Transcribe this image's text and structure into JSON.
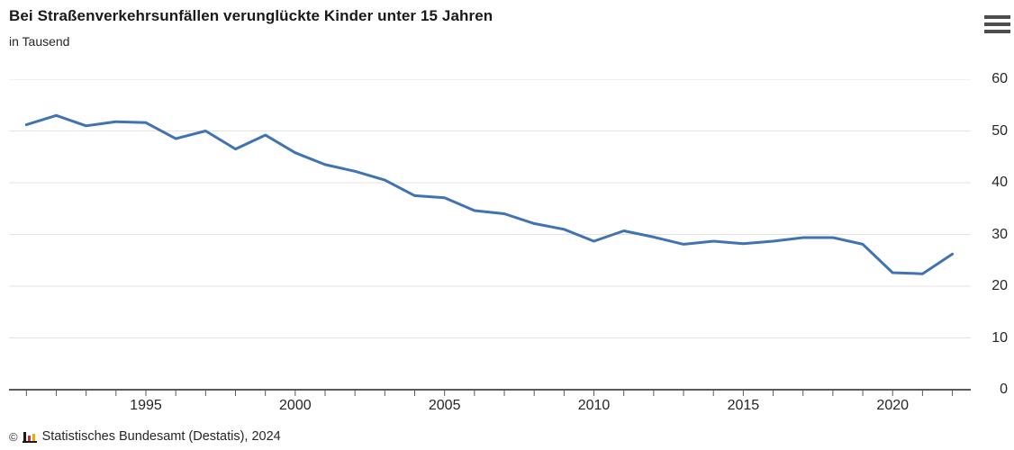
{
  "header": {
    "title": "Bei Straßenverkehrsunfällen verunglückte Kinder unter 15 Jahren",
    "subtitle": "in Tausend",
    "menu_icon": "hamburger-menu-icon"
  },
  "chart_data": {
    "type": "line",
    "title": "Bei Straßenverkehrsunfällen verunglückte Kinder unter 15 Jahren",
    "ylabel": "in Tausend",
    "x": [
      1991,
      1992,
      1993,
      1994,
      1995,
      1996,
      1997,
      1998,
      1999,
      2000,
      2001,
      2002,
      2003,
      2004,
      2005,
      2006,
      2007,
      2008,
      2009,
      2010,
      2011,
      2012,
      2013,
      2014,
      2015,
      2016,
      2017,
      2018,
      2019,
      2020,
      2021,
      2022
    ],
    "values": [
      51.2,
      53.0,
      51.0,
      51.8,
      51.6,
      48.5,
      50.0,
      46.5,
      49.2,
      45.8,
      43.5,
      42.2,
      40.5,
      37.5,
      37.1,
      34.6,
      34.0,
      32.1,
      31.0,
      28.7,
      30.7,
      29.5,
      28.1,
      28.7,
      28.2,
      28.7,
      29.4,
      29.4,
      28.1,
      22.6,
      22.4,
      26.2
    ],
    "ylim": [
      0,
      60
    ],
    "yticks": [
      0,
      10,
      20,
      30,
      40,
      50,
      60
    ],
    "xtick_labels": [
      1995,
      2000,
      2005,
      2010,
      2015,
      2020
    ],
    "grid": "horizontal",
    "y_axis_side": "right",
    "line_color": "#4173b3",
    "gridline_color": "#e3e3e3",
    "axis_color": "#595959",
    "label_color": "#262626"
  },
  "footer": {
    "copyright_sign": "©",
    "source": "Statistisches Bundesamt (Destatis), 2024",
    "logo_icon": "destatis-bar-chart-icon",
    "logo_colors": [
      "#1a1a1a",
      "#d22d32",
      "#f0ab00"
    ]
  }
}
